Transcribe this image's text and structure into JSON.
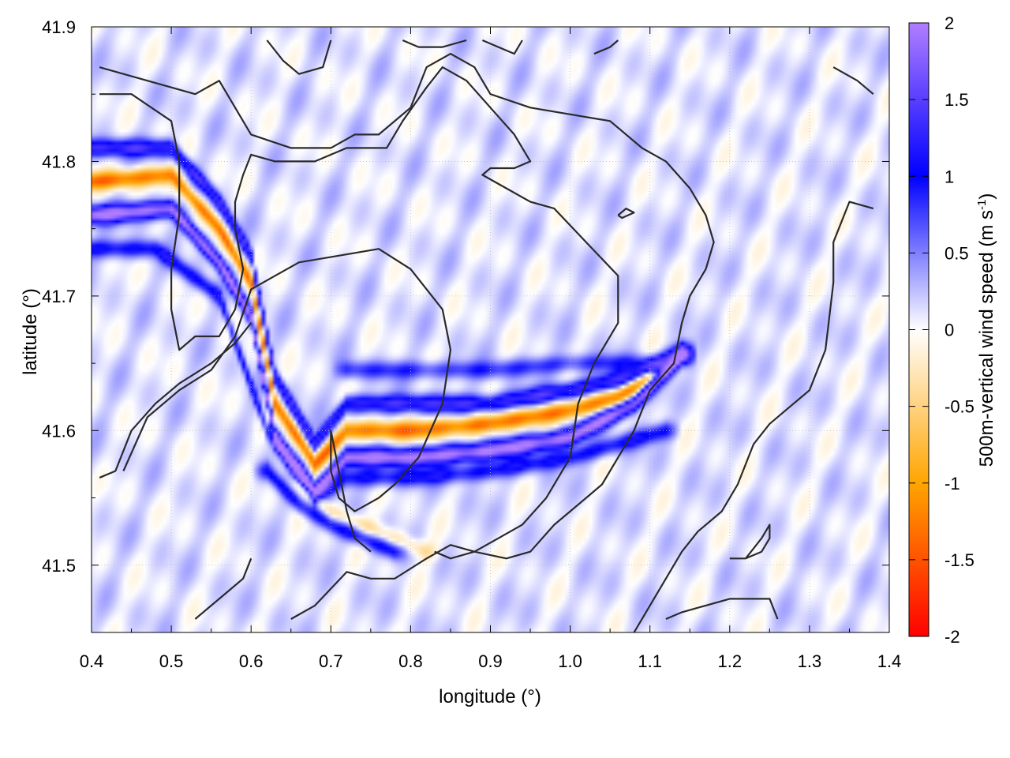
{
  "chart_data": {
    "type": "heatmap",
    "xlabel": "longitude (°)",
    "ylabel": "latitude (°)",
    "xlim": [
      0.4,
      1.4
    ],
    "ylim": [
      41.45,
      41.9
    ],
    "x_ticks": [
      "0.4",
      "0.5",
      "0.6",
      "0.7",
      "0.8",
      "0.9",
      "1.0",
      "1.1",
      "1.2",
      "1.3",
      "1.4"
    ],
    "y_ticks": [
      "41.5",
      "41.6",
      "41.7",
      "41.8",
      "41.9"
    ],
    "x_tick_values": [
      0.4,
      0.5,
      0.6,
      0.7,
      0.8,
      0.9,
      1.0,
      1.1,
      1.2,
      1.3,
      1.4
    ],
    "y_tick_values": [
      41.5,
      41.6,
      41.7,
      41.8,
      41.9
    ],
    "grid": true,
    "colorbar": {
      "label": "500m-vertical wind speed (m s",
      "label_sup": "-1",
      "label_end": ")",
      "range": [
        -2,
        2
      ],
      "ticks": [
        "2",
        "1.5",
        "1",
        "0.5",
        "0",
        "-0.5",
        "-1",
        "-1.5",
        "-2"
      ],
      "tick_values": [
        2,
        1.5,
        1,
        0.5,
        0,
        -0.5,
        -1,
        -1.5,
        -2
      ],
      "colormap": [
        {
          "value": -2,
          "color": "#ff0000"
        },
        {
          "value": -1,
          "color": "#ffa500"
        },
        {
          "value": 0,
          "color": "#ffffff"
        },
        {
          "value": 1,
          "color": "#0000ff"
        },
        {
          "value": 2,
          "color": "#b07eff"
        }
      ]
    },
    "wave_bands": [
      {
        "lon": [
          0.4,
          0.5,
          0.56,
          0.6,
          0.63,
          0.68,
          0.72,
          0.8,
          0.9,
          1.0,
          1.08,
          1.14
        ],
        "lat": [
          41.81,
          41.81,
          41.77,
          41.73,
          41.64,
          41.59,
          41.62,
          41.62,
          41.62,
          41.63,
          41.64,
          41.66
        ],
        "amp": 1.2
      },
      {
        "lon": [
          0.4,
          0.5,
          0.56,
          0.6,
          0.63,
          0.68,
          0.72,
          0.8,
          0.9,
          1.0,
          1.06,
          1.1
        ],
        "lat": [
          41.785,
          41.79,
          41.75,
          41.71,
          41.62,
          41.575,
          41.6,
          41.6,
          41.605,
          41.615,
          41.625,
          41.64
        ],
        "amp": -1.4
      },
      {
        "lon": [
          0.4,
          0.5,
          0.56,
          0.6,
          0.63,
          0.68,
          0.72,
          0.8,
          0.9,
          1.0,
          1.08,
          1.14
        ],
        "lat": [
          41.76,
          41.765,
          41.725,
          41.685,
          41.595,
          41.555,
          41.58,
          41.58,
          41.585,
          41.595,
          41.62,
          41.655
        ],
        "amp": 1.9
      },
      {
        "lon": [
          0.4,
          0.48,
          0.56,
          0.62,
          0.68,
          0.72,
          0.8,
          0.9,
          1.0,
          1.12
        ],
        "lat": [
          41.735,
          41.735,
          41.7,
          41.6,
          41.55,
          41.565,
          41.565,
          41.57,
          41.58,
          41.6
        ],
        "amp": 0.9
      },
      {
        "lon": [
          0.72,
          0.8,
          0.9,
          1.0,
          1.1
        ],
        "lat": [
          41.645,
          41.645,
          41.645,
          41.65,
          41.65
        ],
        "amp": 0.7
      },
      {
        "lon": [
          0.62,
          0.66,
          0.7,
          0.74,
          0.78
        ],
        "lat": [
          41.57,
          41.545,
          41.53,
          41.52,
          41.51
        ],
        "amp": 0.9
      },
      {
        "lon": [
          0.66,
          0.7,
          0.74,
          0.78,
          0.82
        ],
        "lat": [
          41.56,
          41.54,
          41.53,
          41.52,
          41.51
        ],
        "amp": -0.5
      }
    ],
    "contours": [
      [
        [
          0.41,
          41.87
        ],
        [
          0.47,
          41.86
        ],
        [
          0.53,
          41.85
        ],
        [
          0.56,
          41.86
        ],
        [
          0.6,
          41.82
        ],
        [
          0.65,
          41.81
        ],
        [
          0.7,
          41.81
        ],
        [
          0.73,
          41.82
        ],
        [
          0.76,
          41.82
        ],
        [
          0.8,
          41.84
        ],
        [
          0.82,
          41.87
        ],
        [
          0.85,
          41.88
        ],
        [
          0.88,
          41.87
        ],
        [
          0.9,
          41.85
        ],
        [
          0.95,
          41.84
        ],
        [
          1.0,
          41.835
        ],
        [
          1.05,
          41.83
        ],
        [
          1.09,
          41.81
        ],
        [
          1.12,
          41.8
        ],
        [
          1.15,
          41.78
        ],
        [
          1.17,
          41.76
        ],
        [
          1.18,
          41.74
        ],
        [
          1.17,
          41.72
        ],
        [
          1.15,
          41.7
        ],
        [
          1.14,
          41.68
        ],
        [
          1.13,
          41.65
        ],
        [
          1.1,
          41.63
        ],
        [
          1.08,
          41.6
        ],
        [
          1.06,
          41.58
        ],
        [
          1.04,
          41.56
        ],
        [
          1.02,
          41.55
        ],
        [
          0.98,
          41.53
        ],
        [
          0.95,
          41.51
        ],
        [
          0.92,
          41.505
        ],
        [
          0.88,
          41.51
        ],
        [
          0.85,
          41.515
        ],
        [
          0.82,
          41.505
        ],
        [
          0.78,
          41.49
        ],
        [
          0.75,
          41.49
        ],
        [
          0.72,
          41.495
        ],
        [
          0.68,
          41.47
        ],
        [
          0.65,
          41.46
        ]
      ],
      [
        [
          0.41,
          41.85
        ],
        [
          0.45,
          41.85
        ],
        [
          0.5,
          41.83
        ],
        [
          0.51,
          41.8
        ],
        [
          0.51,
          41.76
        ],
        [
          0.5,
          41.72
        ],
        [
          0.5,
          41.69
        ],
        [
          0.51,
          41.66
        ],
        [
          0.53,
          41.67
        ],
        [
          0.56,
          41.67
        ],
        [
          0.58,
          41.69
        ],
        [
          0.59,
          41.72
        ],
        [
          0.58,
          41.75
        ],
        [
          0.58,
          41.77
        ],
        [
          0.59,
          41.79
        ],
        [
          0.6,
          41.805
        ],
        [
          0.63,
          41.8
        ],
        [
          0.68,
          41.8
        ],
        [
          0.72,
          41.81
        ],
        [
          0.77,
          41.81
        ],
        [
          0.79,
          41.83
        ],
        [
          0.82,
          41.855
        ],
        [
          0.84,
          41.87
        ],
        [
          0.87,
          41.86
        ],
        [
          0.9,
          41.84
        ],
        [
          0.93,
          41.82
        ],
        [
          0.95,
          41.8
        ],
        [
          0.93,
          41.795
        ],
        [
          0.9,
          41.795
        ],
        [
          0.89,
          41.79
        ],
        [
          0.92,
          41.78
        ],
        [
          0.95,
          41.77
        ],
        [
          0.98,
          41.765
        ],
        [
          1.02,
          41.74
        ],
        [
          1.06,
          41.715
        ],
        [
          1.06,
          41.68
        ],
        [
          1.03,
          41.65
        ],
        [
          1.01,
          41.62
        ],
        [
          1.0,
          41.58
        ],
        [
          0.97,
          41.55
        ],
        [
          0.94,
          41.53
        ],
        [
          0.91,
          41.52
        ],
        [
          0.88,
          41.51
        ],
        [
          0.85,
          41.505
        ],
        [
          0.83,
          41.51
        ]
      ],
      [
        [
          0.44,
          41.57
        ],
        [
          0.47,
          41.61
        ],
        [
          0.51,
          41.63
        ],
        [
          0.55,
          41.645
        ],
        [
          0.58,
          41.67
        ],
        [
          0.6,
          41.705
        ],
        [
          0.63,
          41.715
        ],
        [
          0.66,
          41.725
        ],
        [
          0.71,
          41.73
        ],
        [
          0.76,
          41.735
        ],
        [
          0.8,
          41.72
        ],
        [
          0.84,
          41.69
        ],
        [
          0.85,
          41.66
        ],
        [
          0.84,
          41.62
        ],
        [
          0.81,
          41.58
        ],
        [
          0.78,
          41.56
        ],
        [
          0.76,
          41.55
        ],
        [
          0.73,
          41.54
        ],
        [
          0.71,
          41.55
        ],
        [
          0.7,
          41.57
        ],
        [
          0.7,
          41.59
        ],
        [
          0.7,
          41.6
        ]
      ],
      [
        [
          0.7,
          41.6
        ],
        [
          0.71,
          41.57
        ],
        [
          0.72,
          41.54
        ],
        [
          0.73,
          41.52
        ],
        [
          0.75,
          41.51
        ]
      ],
      [
        [
          0.6,
          41.505
        ],
        [
          0.59,
          41.49
        ],
        [
          0.57,
          41.48
        ],
        [
          0.55,
          41.47
        ],
        [
          0.53,
          41.46
        ]
      ],
      [
        [
          0.41,
          41.565
        ],
        [
          0.43,
          41.57
        ],
        [
          0.45,
          41.6
        ],
        [
          0.48,
          41.62
        ],
        [
          0.51,
          41.635
        ],
        [
          0.55,
          41.65
        ],
        [
          0.58,
          41.665
        ],
        [
          0.6,
          41.68
        ]
      ],
      [
        [
          1.33,
          41.87
        ],
        [
          1.36,
          41.86
        ],
        [
          1.38,
          41.85
        ]
      ],
      [
        [
          1.38,
          41.765
        ],
        [
          1.35,
          41.77
        ],
        [
          1.33,
          41.74
        ],
        [
          1.33,
          41.71
        ],
        [
          1.32,
          41.66
        ],
        [
          1.3,
          41.63
        ],
        [
          1.28,
          41.62
        ],
        [
          1.25,
          41.605
        ],
        [
          1.23,
          41.59
        ],
        [
          1.21,
          41.56
        ],
        [
          1.19,
          41.54
        ],
        [
          1.16,
          41.525
        ],
        [
          1.14,
          41.51
        ],
        [
          1.12,
          41.49
        ],
        [
          1.1,
          41.47
        ],
        [
          1.08,
          41.45
        ]
      ],
      [
        [
          1.12,
          41.46
        ],
        [
          1.14,
          41.465
        ],
        [
          1.17,
          41.47
        ],
        [
          1.2,
          41.475
        ],
        [
          1.25,
          41.475
        ],
        [
          1.26,
          41.46
        ]
      ],
      [
        [
          1.2,
          41.505
        ],
        [
          1.22,
          41.505
        ],
        [
          1.24,
          41.51
        ],
        [
          1.25,
          41.52
        ],
        [
          1.25,
          41.53
        ],
        [
          1.24,
          41.52
        ],
        [
          1.22,
          41.505
        ]
      ],
      [
        [
          1.06,
          41.76
        ],
        [
          1.07,
          41.765
        ],
        [
          1.08,
          41.762
        ],
        [
          1.065,
          41.758
        ],
        [
          1.06,
          41.76
        ]
      ],
      [
        [
          0.62,
          41.89
        ],
        [
          0.64,
          41.875
        ],
        [
          0.66,
          41.865
        ],
        [
          0.69,
          41.87
        ],
        [
          0.7,
          41.89
        ]
      ],
      [
        [
          0.79,
          41.89
        ],
        [
          0.81,
          41.885
        ],
        [
          0.84,
          41.885
        ],
        [
          0.87,
          41.89
        ]
      ],
      [
        [
          0.89,
          41.89
        ],
        [
          0.91,
          41.885
        ],
        [
          0.93,
          41.88
        ],
        [
          0.94,
          41.89
        ]
      ],
      [
        [
          1.03,
          41.88
        ],
        [
          1.05,
          41.885
        ],
        [
          1.06,
          41.89
        ]
      ]
    ]
  }
}
